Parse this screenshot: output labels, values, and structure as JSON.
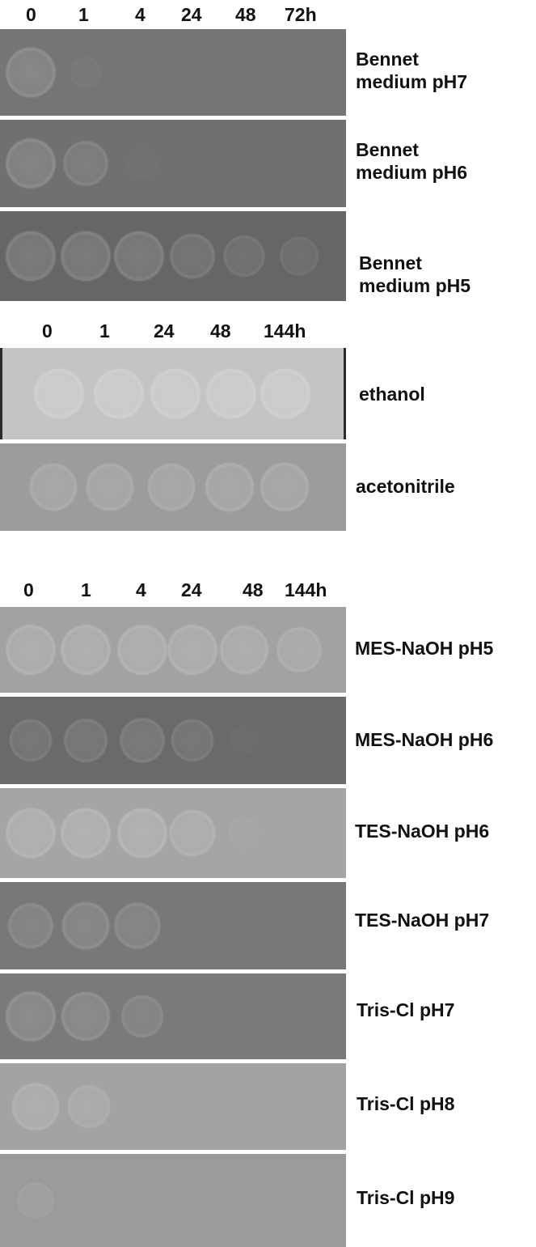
{
  "panels": [
    {
      "time_labels": [
        "0",
        "1",
        "4",
        "24",
        "48",
        "72h"
      ],
      "rows": [
        {
          "label": "Bennet\nmedium pH7",
          "background": "#757575",
          "spots": [
            0.9,
            0.15,
            0,
            0,
            0,
            0
          ]
        },
        {
          "label": "Bennet\nmedium pH6",
          "background": "#707070",
          "spots": [
            0.95,
            0.7,
            0.1,
            0,
            0,
            0
          ]
        },
        {
          "label": "Bennet\nmedium pH5",
          "background": "#666666",
          "spots": [
            0.9,
            0.9,
            0.9,
            0.7,
            0.55,
            0.45
          ]
        }
      ]
    },
    {
      "time_labels": [
        "0",
        "1",
        "24",
        "48",
        "144h"
      ],
      "rows": [
        {
          "label": "ethanol",
          "background": "#c4c4c4",
          "spots": [
            1,
            1,
            1,
            1,
            1
          ]
        },
        {
          "label": "acetonitrile",
          "background": "#9c9c9c",
          "spots": [
            0.8,
            0.8,
            0.8,
            0.85,
            0.85
          ]
        }
      ]
    },
    {
      "time_labels": [
        "0",
        "1",
        "4",
        "24",
        "48",
        "144h"
      ],
      "rows": [
        {
          "label": "MES-NaOH pH5",
          "background": "#a2a2a2",
          "spots": [
            0.9,
            0.95,
            0.95,
            0.9,
            0.85,
            0.7
          ]
        },
        {
          "label": "MES-NaOH pH6",
          "background": "#6a6a6a",
          "spots": [
            0.6,
            0.65,
            0.7,
            0.6,
            0.1,
            0
          ]
        },
        {
          "label": "TES-NaOH pH6",
          "background": "#a5a5a5",
          "spots": [
            0.9,
            0.95,
            0.95,
            0.75,
            0.15,
            0
          ]
        },
        {
          "label": "TES-NaOH pH7",
          "background": "#787878",
          "spots": [
            0.7,
            0.8,
            0.75,
            0,
            0,
            0
          ]
        },
        {
          "label": "Tris-Cl pH7",
          "background": "#7a7a7a",
          "spots": [
            0.9,
            0.85,
            0.6,
            0,
            0,
            0
          ]
        },
        {
          "label": "Tris-Cl pH8",
          "background": "#a3a3a3",
          "spots": [
            0.8,
            0.6,
            0,
            0,
            0,
            0
          ]
        },
        {
          "label": "Tris-Cl pH9",
          "background": "#9b9b9b",
          "spots": [
            0.35,
            0,
            0,
            0,
            0,
            0
          ]
        }
      ]
    }
  ]
}
